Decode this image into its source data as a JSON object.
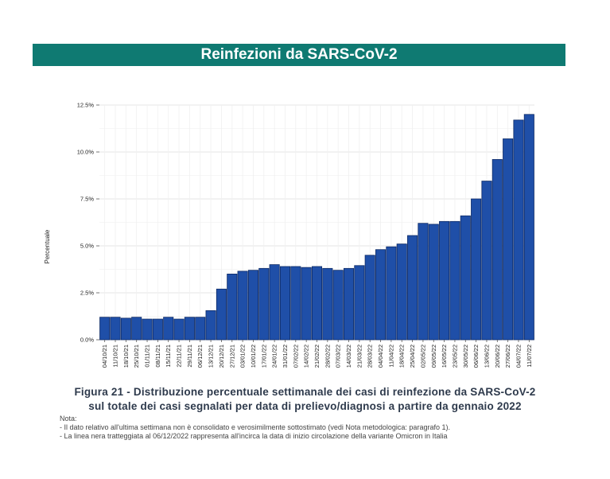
{
  "header": {
    "title": "Reinfezioni da SARS-CoV-2"
  },
  "chart_data": {
    "type": "bar",
    "ylabel": "Percentuale",
    "xlabel": "",
    "ylim": [
      0,
      12.5
    ],
    "y_ticks": [
      "0.0%",
      "2.5%",
      "5.0%",
      "7.5%",
      "10.0%",
      "12.5%"
    ],
    "bar_color": "#1f4fa8",
    "grid": true,
    "categories": [
      "04/10/21",
      "11/10/21",
      "18/10/21",
      "25/10/21",
      "01/11/21",
      "08/11/21",
      "15/11/21",
      "22/11/21",
      "29/11/21",
      "06/12/21",
      "13/12/21",
      "20/12/21",
      "27/12/21",
      "03/01/22",
      "10/01/22",
      "17/01/22",
      "24/01/22",
      "31/01/22",
      "07/02/22",
      "14/02/22",
      "21/02/22",
      "28/02/22",
      "07/03/22",
      "14/03/22",
      "21/03/22",
      "28/03/22",
      "04/04/22",
      "11/04/22",
      "18/04/22",
      "25/04/22",
      "02/05/22",
      "09/05/22",
      "16/05/22",
      "23/05/22",
      "30/05/22",
      "06/06/22",
      "13/06/22",
      "20/06/22",
      "27/06/22",
      "04/07/22",
      "11/07/22"
    ],
    "values": [
      1.2,
      1.2,
      1.15,
      1.2,
      1.1,
      1.1,
      1.2,
      1.1,
      1.2,
      1.2,
      1.55,
      2.7,
      3.5,
      3.65,
      3.7,
      3.8,
      4.0,
      3.9,
      3.9,
      3.85,
      3.9,
      3.8,
      3.7,
      3.8,
      3.95,
      4.5,
      4.8,
      4.95,
      5.1,
      5.55,
      6.2,
      6.15,
      6.3,
      6.3,
      6.6,
      7.5,
      8.45,
      9.6,
      10.7,
      11.7,
      12.0
    ]
  },
  "caption": {
    "line1": "Figura 21 - Distribuzione percentuale settimanale dei casi di reinfezione da SARS-CoV-2",
    "line2": "sul totale dei casi segnalati per data di prelievo/diagnosi a partire da gennaio 2022"
  },
  "notes": {
    "title": "Nota:",
    "items": [
      "- Il dato relativo all'ultima settimana non è consolidato e verosimilmente sottostimato (vedi Nota metodologica: paragrafo 1).",
      "- La linea nera tratteggiata al 06/12/2022 rappresenta all'incirca la data di inizio circolazione della variante Omicron in Italia"
    ]
  }
}
